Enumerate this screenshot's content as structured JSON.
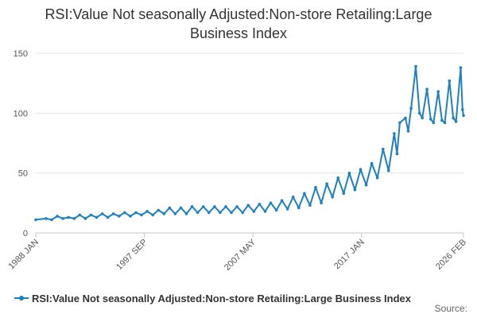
{
  "chart_data": {
    "type": "line",
    "title_lines": [
      "RSI:Value Not seasonally Adjusted:Non-store Retailing:Large",
      "Business Index"
    ],
    "xlabel": "",
    "ylabel": "",
    "x_tick_labels": [
      "1988 JAN",
      "1997 SEP",
      "2007 MAY",
      "2017 JAN",
      "2026 FEB"
    ],
    "x_tick_dates": [
      "1988-01",
      "1997-09",
      "2007-05",
      "2017-01",
      "2026-02"
    ],
    "x_range": [
      "1988-01",
      "2026-02"
    ],
    "y_ticks": [
      0,
      50,
      100,
      150
    ],
    "ylim": [
      0,
      150
    ],
    "grid": "horizontal",
    "legend_position": "bottom-left",
    "series": [
      {
        "name": "RSI:Value Not seasonally Adjusted:Non-store Retailing:Large Business Index",
        "color": "#1f80c1",
        "points": [
          [
            "1988-01",
            11
          ],
          [
            "1988-12",
            12
          ],
          [
            "1989-06",
            11
          ],
          [
            "1989-12",
            14
          ],
          [
            "1990-06",
            12
          ],
          [
            "1990-12",
            13
          ],
          [
            "1991-06",
            12
          ],
          [
            "1991-12",
            15
          ],
          [
            "1992-06",
            12
          ],
          [
            "1992-12",
            15
          ],
          [
            "1993-06",
            13
          ],
          [
            "1993-12",
            16
          ],
          [
            "1994-06",
            13
          ],
          [
            "1994-12",
            16
          ],
          [
            "1995-06",
            14
          ],
          [
            "1995-12",
            17
          ],
          [
            "1996-06",
            14
          ],
          [
            "1996-12",
            17
          ],
          [
            "1997-06",
            15
          ],
          [
            "1997-12",
            18
          ],
          [
            "1998-06",
            15
          ],
          [
            "1998-12",
            19
          ],
          [
            "1999-06",
            16
          ],
          [
            "1999-12",
            21
          ],
          [
            "2000-06",
            16
          ],
          [
            "2000-12",
            21
          ],
          [
            "2001-06",
            16
          ],
          [
            "2001-12",
            22
          ],
          [
            "2002-06",
            17
          ],
          [
            "2002-12",
            22
          ],
          [
            "2003-06",
            17
          ],
          [
            "2003-12",
            22
          ],
          [
            "2004-06",
            17
          ],
          [
            "2004-12",
            22
          ],
          [
            "2005-06",
            17
          ],
          [
            "2005-12",
            22
          ],
          [
            "2006-06",
            17
          ],
          [
            "2006-12",
            23
          ],
          [
            "2007-06",
            18
          ],
          [
            "2007-12",
            24
          ],
          [
            "2008-06",
            18
          ],
          [
            "2008-12",
            25
          ],
          [
            "2009-06",
            19
          ],
          [
            "2009-12",
            27
          ],
          [
            "2010-06",
            20
          ],
          [
            "2010-12",
            30
          ],
          [
            "2011-06",
            21
          ],
          [
            "2011-12",
            33
          ],
          [
            "2012-06",
            23
          ],
          [
            "2012-12",
            38
          ],
          [
            "2013-06",
            25
          ],
          [
            "2013-12",
            41
          ],
          [
            "2014-06",
            30
          ],
          [
            "2014-12",
            46
          ],
          [
            "2015-06",
            33
          ],
          [
            "2015-12",
            50
          ],
          [
            "2016-06",
            36
          ],
          [
            "2016-12",
            53
          ],
          [
            "2017-06",
            40
          ],
          [
            "2017-12",
            58
          ],
          [
            "2018-06",
            46
          ],
          [
            "2018-12",
            70
          ],
          [
            "2019-06",
            52
          ],
          [
            "2019-12",
            83
          ],
          [
            "2020-03",
            66
          ],
          [
            "2020-06",
            92
          ],
          [
            "2020-12",
            96
          ],
          [
            "2021-03",
            85
          ],
          [
            "2021-06",
            104
          ],
          [
            "2021-11",
            139
          ],
          [
            "2022-03",
            100
          ],
          [
            "2022-06",
            96
          ],
          [
            "2022-11",
            120
          ],
          [
            "2023-03",
            95
          ],
          [
            "2023-06",
            92
          ],
          [
            "2023-11",
            118
          ],
          [
            "2024-03",
            94
          ],
          [
            "2024-06",
            92
          ],
          [
            "2024-11",
            127
          ],
          [
            "2025-03",
            96
          ],
          [
            "2025-06",
            93
          ],
          [
            "2025-11",
            138
          ],
          [
            "2026-01",
            103
          ],
          [
            "2026-02",
            98
          ]
        ]
      }
    ]
  },
  "source_label": "Source:"
}
